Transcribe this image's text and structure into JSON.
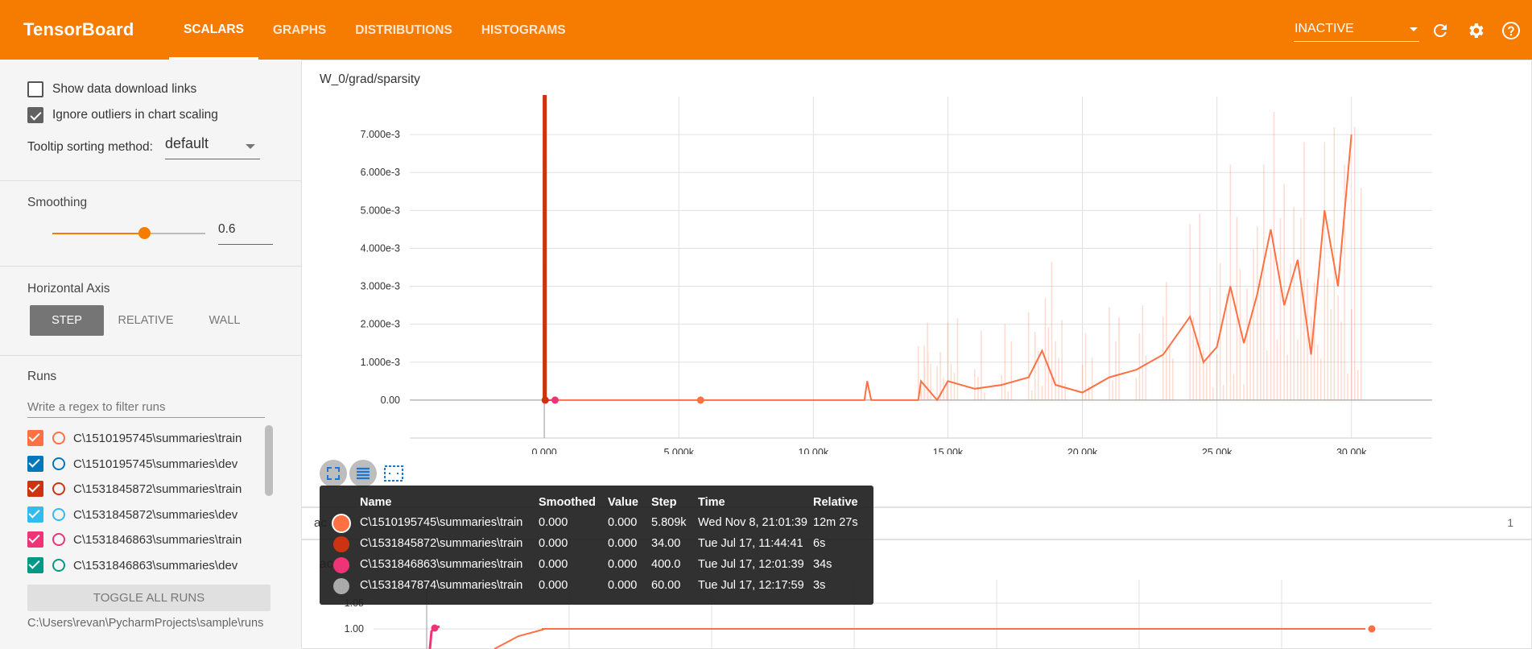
{
  "header": {
    "brand": "TensorBoard",
    "tabs": [
      {
        "label": "SCALARS",
        "active": true
      },
      {
        "label": "GRAPHS",
        "active": false
      },
      {
        "label": "DISTRIBUTIONS",
        "active": false
      },
      {
        "label": "HISTOGRAMS",
        "active": false
      }
    ],
    "dashboard_select": "INACTIVE",
    "icons": [
      "refresh-icon",
      "settings-icon",
      "help-icon"
    ]
  },
  "sidebar": {
    "show_download_links": {
      "label": "Show data download links",
      "checked": false
    },
    "ignore_outliers": {
      "label": "Ignore outliers in chart scaling",
      "checked": true
    },
    "tooltip_sorting": {
      "label": "Tooltip sorting method:",
      "value": "default"
    },
    "smoothing": {
      "title": "Smoothing",
      "value": "0.6",
      "fraction": 0.6
    },
    "horizontal_axis": {
      "title": "Horizontal Axis",
      "options": [
        "STEP",
        "RELATIVE",
        "WALL"
      ],
      "selected": "STEP"
    },
    "runs": {
      "title": "Runs",
      "filter_placeholder": "Write a regex to filter runs",
      "items": [
        {
          "name": "C\\1510195745\\summaries\\train",
          "color": "#ff7043",
          "checked": true
        },
        {
          "name": "C\\1510195745\\summaries\\dev",
          "color": "#0077bb",
          "checked": true
        },
        {
          "name": "C\\1531845872\\summaries\\train",
          "color": "#cc3311",
          "checked": true
        },
        {
          "name": "C\\1531845872\\summaries\\dev",
          "color": "#33bbee",
          "checked": true
        },
        {
          "name": "C\\1531846863\\summaries\\train",
          "color": "#ee3377",
          "checked": true
        },
        {
          "name": "C\\1531846863\\summaries\\dev",
          "color": "#009988",
          "checked": true
        }
      ],
      "toggle_label": "TOGGLE ALL RUNS",
      "path": "C:\\Users\\revan\\PycharmProjects\\sample\\runs"
    }
  },
  "main": {
    "chart1_title": "W_0/grad/sparsity",
    "group_label_partial": "ac",
    "group_count": "1",
    "chart2_label_partial": "ac"
  },
  "chart_data": [
    {
      "type": "line",
      "title": "W_0/grad/sparsity",
      "x_ticks": [
        "0.000",
        "5.000k",
        "10.00k",
        "15.00k",
        "20.00k",
        "25.00k",
        "30.00k"
      ],
      "y_ticks": [
        "0.00",
        "1.000e-3",
        "2.000e-3",
        "3.000e-3",
        "4.000e-3",
        "5.000e-3",
        "6.000e-3",
        "7.000e-3"
      ],
      "xlim": [
        -5000,
        33000
      ],
      "ylim": [
        -0.001,
        0.008
      ],
      "series": [
        {
          "name": "C\\1510195745\\summaries\\train",
          "color": "#ff7043",
          "x": [
            0,
            5000,
            11900,
            12000,
            12150,
            13900,
            14000,
            14600,
            15000,
            16000,
            17000,
            18000,
            18500,
            19000,
            20000,
            21000,
            22000,
            23000,
            24000,
            24500,
            25000,
            25500,
            26000,
            26500,
            27000,
            27500,
            28000,
            28500,
            29000,
            29500,
            30000
          ],
          "y": [
            0,
            0,
            0,
            0.0005,
            0,
            0,
            0.0005,
            0,
            0.0005,
            0.0003,
            0.0004,
            0.0006,
            0.0013,
            0.0004,
            0.0002,
            0.0006,
            0.0008,
            0.0012,
            0.0022,
            0.001,
            0.0014,
            0.003,
            0.0015,
            0.0028,
            0.0045,
            0.0025,
            0.0037,
            0.0012,
            0.005,
            0.003,
            0.007
          ]
        },
        {
          "name": "C\\1531845872\\summaries\\train",
          "color": "#cc3311",
          "x": [
            0,
            0,
            30,
            34
          ],
          "y": [
            0,
            0.008,
            0.008,
            0
          ]
        },
        {
          "name": "C\\1531846863\\summaries\\train",
          "color": "#ee3377",
          "x": [
            0,
            400
          ],
          "y": [
            0,
            0
          ]
        }
      ]
    },
    {
      "type": "line",
      "y_ticks": [
        "1.05",
        "1.00"
      ],
      "series": [
        {
          "name": "C\\1510195745\\summaries\\train",
          "color": "#ff7043"
        }
      ]
    }
  ],
  "tooltip": {
    "headers": [
      "Name",
      "Smoothed",
      "Value",
      "Step",
      "Time",
      "Relative"
    ],
    "rows": [
      {
        "color": "#ff7043",
        "name": "C\\1510195745\\summaries\\train",
        "smoothed": "0.000",
        "value": "0.000",
        "step": "5.809k",
        "time": "Wed Nov 8, 21:01:39",
        "relative": "12m 27s"
      },
      {
        "color": "#cc3311",
        "name": "C\\1531845872\\summaries\\train",
        "smoothed": "0.000",
        "value": "0.000",
        "step": "34.00",
        "time": "Tue Jul 17, 11:44:41",
        "relative": "6s"
      },
      {
        "color": "#ee3377",
        "name": "C\\1531846863\\summaries\\train",
        "smoothed": "0.000",
        "value": "0.000",
        "step": "400.0",
        "time": "Tue Jul 17, 12:01:39",
        "relative": "34s"
      },
      {
        "color": "#aaaaaa",
        "name": "C\\1531847874\\summaries\\train",
        "smoothed": "0.000",
        "value": "0.000",
        "step": "60.00",
        "time": "Tue Jul 17, 12:17:59",
        "relative": "3s"
      }
    ]
  }
}
